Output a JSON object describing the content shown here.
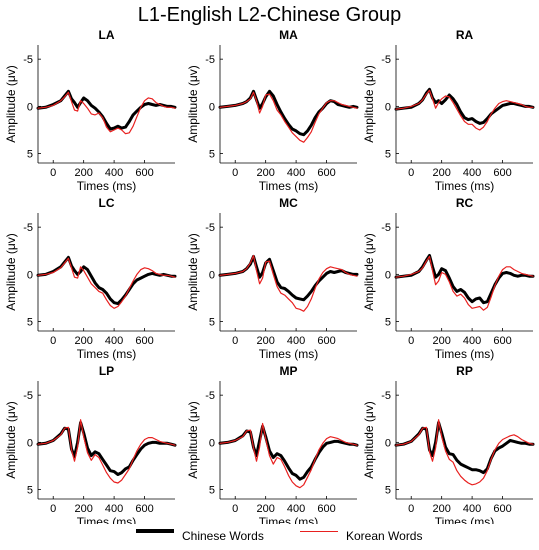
{
  "title": "L1-English L2-Chinese Group",
  "chart_data": {
    "type": "line",
    "xlabel": "Times (ms)",
    "ylabel": "Amplitude (μv)",
    "xlim": [
      -100,
      800
    ],
    "ylim": [
      -6.5,
      6
    ],
    "y_inverted": true,
    "xticks": [
      0,
      200,
      400,
      600
    ],
    "xtick_labels": [
      "0",
      "200",
      "400",
      "600"
    ],
    "yticks": [
      -5,
      0,
      5
    ],
    "ytick_labels": [
      "-5",
      "0",
      "5"
    ],
    "legend_position": "bottom",
    "legend": [
      {
        "name": "Chinese Words",
        "color": "#000000"
      },
      {
        "name": "Korean Words",
        "color": "#e8201f"
      }
    ],
    "x": [
      -100,
      -50,
      0,
      50,
      75,
      100,
      120,
      140,
      160,
      180,
      200,
      225,
      250,
      275,
      300,
      325,
      350,
      375,
      400,
      425,
      450,
      475,
      500,
      525,
      550,
      575,
      600,
      625,
      650,
      675,
      700,
      725,
      750,
      775,
      800
    ],
    "panels": [
      {
        "label": "LA",
        "series": [
          {
            "name": "Chinese Words",
            "values": [
              0.2,
              0.1,
              -0.2,
              -0.6,
              -1.1,
              -1.6,
              -0.8,
              -0.4,
              0.1,
              -0.4,
              -0.9,
              -0.6,
              -0.1,
              0.2,
              0.6,
              1.1,
              1.8,
              2.4,
              2.3,
              2.1,
              2.3,
              2.2,
              1.6,
              0.9,
              0.5,
              0.1,
              -0.2,
              -0.3,
              -0.2,
              -0.1,
              -0.2,
              -0.1,
              0.0,
              0.0,
              0.1
            ]
          },
          {
            "name": "Korean Words",
            "values": [
              0.2,
              0.1,
              -0.1,
              -0.6,
              -1.0,
              -1.5,
              -0.5,
              0.4,
              0.5,
              -0.6,
              -0.3,
              0.2,
              0.8,
              0.9,
              0.7,
              1.2,
              2.2,
              2.7,
              2.5,
              2.3,
              2.5,
              2.9,
              2.8,
              2.1,
              1.1,
              0.1,
              -0.6,
              -0.9,
              -0.8,
              -0.4,
              -0.2,
              0.0,
              0.1,
              0.1,
              0.2
            ]
          }
        ]
      },
      {
        "label": "MA",
        "series": [
          {
            "name": "Chinese Words",
            "values": [
              0.1,
              0.0,
              -0.1,
              -0.3,
              -0.5,
              -0.9,
              -1.6,
              -0.7,
              0.2,
              -0.3,
              -1.0,
              -1.6,
              -1.1,
              -0.2,
              0.6,
              1.3,
              1.9,
              2.4,
              2.6,
              2.9,
              3.0,
              2.6,
              2.0,
              1.2,
              0.6,
              0.2,
              -0.3,
              -0.6,
              -0.5,
              -0.2,
              -0.1,
              0.0,
              0.1,
              0.0,
              0.1
            ]
          },
          {
            "name": "Korean Words",
            "values": [
              0.1,
              0.0,
              -0.1,
              -0.3,
              -0.5,
              -0.8,
              -1.5,
              -0.6,
              0.7,
              0.0,
              -1.2,
              -1.3,
              -0.6,
              0.4,
              0.9,
              1.6,
              2.2,
              2.8,
              3.2,
              3.6,
              3.8,
              3.3,
              2.7,
              1.7,
              0.8,
              0.2,
              -0.4,
              -0.6,
              -0.6,
              -0.4,
              -0.2,
              -0.1,
              0.0,
              0.1,
              0.2
            ]
          }
        ]
      },
      {
        "label": "RA",
        "series": [
          {
            "name": "Chinese Words",
            "values": [
              0.3,
              0.2,
              0.1,
              -0.3,
              -0.7,
              -1.4,
              -1.8,
              -0.9,
              -0.4,
              -0.6,
              -0.3,
              -0.7,
              -1.2,
              -0.8,
              -0.2,
              0.6,
              1.2,
              1.4,
              1.3,
              1.6,
              1.8,
              1.7,
              1.3,
              0.8,
              0.5,
              0.2,
              -0.1,
              -0.2,
              -0.3,
              -0.3,
              -0.2,
              -0.1,
              0.0,
              0.0,
              0.1
            ]
          },
          {
            "name": "Korean Words",
            "values": [
              0.3,
              0.2,
              0.0,
              -0.3,
              -0.7,
              -1.3,
              -1.7,
              -0.8,
              0.2,
              -0.4,
              -0.8,
              -1.1,
              -1.0,
              -0.4,
              0.3,
              1.0,
              1.6,
              1.9,
              1.9,
              2.3,
              2.5,
              2.2,
              1.6,
              0.8,
              0.2,
              -0.3,
              -0.5,
              -0.6,
              -0.5,
              -0.4,
              -0.3,
              -0.2,
              0.0,
              0.1,
              0.1
            ]
          }
        ]
      },
      {
        "label": "LC",
        "series": [
          {
            "name": "Chinese Words",
            "values": [
              0.1,
              0.0,
              -0.3,
              -0.8,
              -1.3,
              -1.8,
              -0.9,
              -0.4,
              0.0,
              -0.3,
              -0.8,
              -0.5,
              0.2,
              0.9,
              1.4,
              1.6,
              2.0,
              2.6,
              3.0,
              3.1,
              2.7,
              2.2,
              1.6,
              1.0,
              0.6,
              0.4,
              0.2,
              0.0,
              -0.1,
              0.0,
              0.1,
              0.0,
              0.1,
              0.2,
              0.2
            ]
          },
          {
            "name": "Korean Words",
            "values": [
              0.1,
              0.0,
              -0.2,
              -0.7,
              -1.2,
              -1.7,
              -0.7,
              0.3,
              0.4,
              -0.8,
              -0.4,
              0.3,
              1.0,
              1.4,
              1.8,
              2.0,
              2.7,
              3.3,
              3.6,
              3.4,
              2.9,
              2.3,
              1.5,
              0.7,
              0.0,
              -0.5,
              -0.7,
              -0.6,
              -0.4,
              -0.1,
              0.0,
              0.1,
              0.1,
              0.2,
              0.3
            ]
          }
        ]
      },
      {
        "label": "MC",
        "series": [
          {
            "name": "Chinese Words",
            "values": [
              0.1,
              0.0,
              -0.1,
              -0.3,
              -0.6,
              -1.1,
              -1.9,
              -0.8,
              0.3,
              -0.2,
              -1.2,
              -1.6,
              -0.4,
              0.8,
              1.4,
              1.5,
              1.8,
              2.2,
              2.5,
              2.6,
              2.7,
              2.3,
              1.8,
              1.2,
              0.7,
              0.3,
              -0.1,
              -0.3,
              -0.2,
              -0.3,
              -0.4,
              -0.2,
              -0.1,
              0.0,
              0.0
            ]
          },
          {
            "name": "Korean Words",
            "values": [
              0.1,
              0.0,
              -0.1,
              -0.3,
              -0.6,
              -1.2,
              -2.0,
              -0.4,
              1.0,
              0.4,
              -1.3,
              -1.4,
              0.0,
              1.3,
              2.0,
              2.2,
              2.6,
              3.0,
              3.6,
              3.7,
              3.9,
              3.4,
              2.6,
              1.5,
              0.5,
              -0.2,
              -0.6,
              -0.8,
              -0.7,
              -0.6,
              -0.5,
              -0.2,
              0.0,
              0.1,
              0.2
            ]
          }
        ]
      },
      {
        "label": "RC",
        "series": [
          {
            "name": "Chinese Words",
            "values": [
              0.3,
              0.2,
              0.1,
              -0.3,
              -0.8,
              -1.5,
              -2.0,
              -0.8,
              0.3,
              0.0,
              -0.6,
              -0.4,
              0.4,
              1.3,
              1.8,
              1.6,
              1.9,
              2.5,
              2.9,
              2.6,
              2.5,
              3.0,
              2.9,
              2.0,
              1.1,
              0.4,
              -0.1,
              -0.2,
              -0.1,
              0.1,
              0.2,
              0.1,
              0.1,
              0.2,
              0.2
            ]
          },
          {
            "name": "Korean Words",
            "values": [
              0.3,
              0.2,
              0.0,
              -0.3,
              -0.7,
              -1.4,
              -1.9,
              -0.4,
              1.1,
              0.7,
              -0.2,
              0.0,
              0.8,
              1.8,
              2.3,
              2.1,
              2.5,
              3.2,
              3.6,
              3.5,
              3.4,
              3.8,
              3.5,
              2.4,
              1.2,
              0.2,
              -0.5,
              -0.8,
              -0.8,
              -0.5,
              -0.3,
              -0.1,
              0.0,
              0.1,
              0.2
            ]
          }
        ]
      },
      {
        "label": "LP",
        "series": [
          {
            "name": "Chinese Words",
            "values": [
              0.2,
              0.1,
              -0.2,
              -0.9,
              -1.5,
              -1.4,
              0.7,
              1.5,
              0.0,
              -2.1,
              -1.0,
              0.6,
              1.4,
              1.0,
              1.2,
              1.8,
              2.4,
              3.0,
              3.1,
              3.4,
              3.2,
              2.8,
              2.6,
              1.9,
              1.3,
              0.7,
              0.3,
              0.1,
              0.0,
              0.0,
              0.1,
              0.1,
              0.1,
              0.2,
              0.3
            ]
          },
          {
            "name": "Korean Words",
            "values": [
              0.2,
              0.1,
              -0.2,
              -0.8,
              -1.5,
              -1.6,
              0.8,
              2.0,
              0.5,
              -2.4,
              -0.6,
              1.1,
              1.9,
              1.3,
              1.6,
              2.4,
              3.2,
              3.8,
              4.2,
              4.3,
              4.0,
              3.4,
              2.8,
              1.8,
              0.9,
              0.2,
              -0.3,
              -0.5,
              -0.5,
              -0.3,
              -0.1,
              0.0,
              0.1,
              0.2,
              0.3
            ]
          }
        ]
      },
      {
        "label": "MP",
        "series": [
          {
            "name": "Chinese Words",
            "values": [
              0.1,
              0.0,
              -0.2,
              -0.7,
              -1.2,
              -1.1,
              0.5,
              1.4,
              -0.2,
              -1.7,
              -0.6,
              0.9,
              1.6,
              1.2,
              1.4,
              2.0,
              2.7,
              3.3,
              3.5,
              3.9,
              3.7,
              3.1,
              2.6,
              1.8,
              1.1,
              0.5,
              0.1,
              0.0,
              -0.1,
              -0.1,
              0.0,
              0.1,
              0.2,
              0.2,
              0.3
            ]
          },
          {
            "name": "Korean Words",
            "values": [
              0.1,
              0.0,
              -0.2,
              -0.6,
              -1.2,
              -1.3,
              0.6,
              2.0,
              0.5,
              -2.0,
              -0.4,
              1.4,
              2.3,
              1.6,
              1.8,
              2.6,
              3.5,
              4.2,
              4.6,
              4.8,
              4.5,
              3.7,
              2.9,
              1.8,
              0.8,
              0.1,
              -0.4,
              -0.6,
              -0.5,
              -0.4,
              -0.2,
              0.0,
              0.1,
              0.2,
              0.3
            ]
          }
        ]
      },
      {
        "label": "RP",
        "series": [
          {
            "name": "Chinese Words",
            "values": [
              0.3,
              0.2,
              -0.1,
              -0.9,
              -1.5,
              -1.4,
              0.8,
              1.4,
              0.0,
              -2.1,
              -1.0,
              0.5,
              1.2,
              1.3,
              1.9,
              2.3,
              2.5,
              2.7,
              2.9,
              2.9,
              3.0,
              3.2,
              2.8,
              1.7,
              0.9,
              0.6,
              0.4,
              0.1,
              -0.2,
              -0.1,
              0.0,
              0.1,
              0.1,
              0.2,
              0.2
            ]
          },
          {
            "name": "Korean Words",
            "values": [
              0.3,
              0.2,
              -0.1,
              -0.8,
              -1.5,
              -1.6,
              1.0,
              2.0,
              0.6,
              -2.4,
              -0.6,
              0.9,
              1.8,
              2.1,
              3.0,
              3.6,
              4.0,
              4.3,
              4.5,
              4.4,
              4.2,
              3.8,
              3.0,
              1.8,
              0.8,
              0.1,
              -0.3,
              -0.5,
              -0.7,
              -0.8,
              -0.6,
              -0.3,
              -0.1,
              0.1,
              0.2
            ]
          }
        ]
      }
    ]
  }
}
